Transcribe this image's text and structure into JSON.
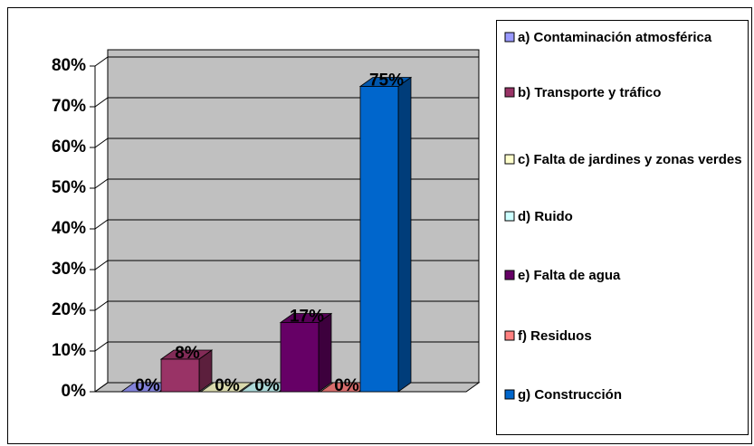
{
  "chart_data": {
    "type": "bar3d",
    "categories": [
      "a) Contaminación atmosférica",
      "b) Transporte y tráfico",
      "c) Falta de jardines y zonas verdes",
      "d) Ruido",
      "e) Falta de agua",
      "f) Residuos",
      "g) Construcción"
    ],
    "values": [
      0,
      8,
      0,
      0,
      17,
      0,
      75
    ],
    "value_labels": [
      "0%",
      "8%",
      "0%",
      "0%",
      "17%",
      "0%",
      "75%"
    ],
    "colors": [
      "#9999ff",
      "#993366",
      "#ffffcc",
      "#ccffff",
      "#660066",
      "#ff8080",
      "#0066cc"
    ],
    "ylim": [
      0,
      80
    ],
    "yticks": [
      {
        "value": 0,
        "label": "0%"
      },
      {
        "value": 10,
        "label": "10%"
      },
      {
        "value": 20,
        "label": "20%"
      },
      {
        "value": 30,
        "label": "30%"
      },
      {
        "value": 40,
        "label": "40%"
      },
      {
        "value": 50,
        "label": "50%"
      },
      {
        "value": 60,
        "label": "60%"
      },
      {
        "value": 70,
        "label": "70%"
      },
      {
        "value": 80,
        "label": "80%"
      }
    ],
    "grid": true,
    "legend": "right"
  }
}
